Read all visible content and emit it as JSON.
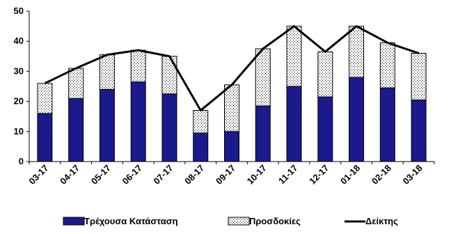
{
  "chart_data": {
    "type": "bar",
    "stacked": true,
    "categories": [
      "03-17",
      "04-17",
      "05-17",
      "06-17",
      "07-17",
      "08-17",
      "09-17",
      "10-17",
      "11-17",
      "12-17",
      "01-18",
      "02-18",
      "03-18"
    ],
    "series": [
      {
        "name": "Τρέχουσα Κατάσταση",
        "kind": "bar",
        "color": "#1a1a8c",
        "values": [
          16.0,
          21.0,
          24.0,
          26.5,
          22.5,
          9.5,
          10.0,
          18.5,
          25.0,
          21.5,
          28.0,
          24.5,
          20.5
        ]
      },
      {
        "name": "Προσδοκίες",
        "kind": "bar",
        "pattern": "dotted",
        "color": "#ffffff",
        "values": [
          10.0,
          10.0,
          11.5,
          10.5,
          12.5,
          7.5,
          15.5,
          19.0,
          20.0,
          15.0,
          17.0,
          15.0,
          15.5
        ]
      },
      {
        "name": "Δείκτης",
        "kind": "line",
        "color": "#000000",
        "values": [
          26.0,
          31.0,
          35.5,
          37.0,
          35.0,
          17.0,
          25.5,
          37.5,
          45.0,
          36.5,
          45.0,
          39.5,
          36.0
        ]
      }
    ],
    "ylim": [
      0,
      50
    ],
    "yticks": [
      0,
      10,
      20,
      30,
      40,
      50
    ],
    "grid": false,
    "legend": "bottom"
  }
}
